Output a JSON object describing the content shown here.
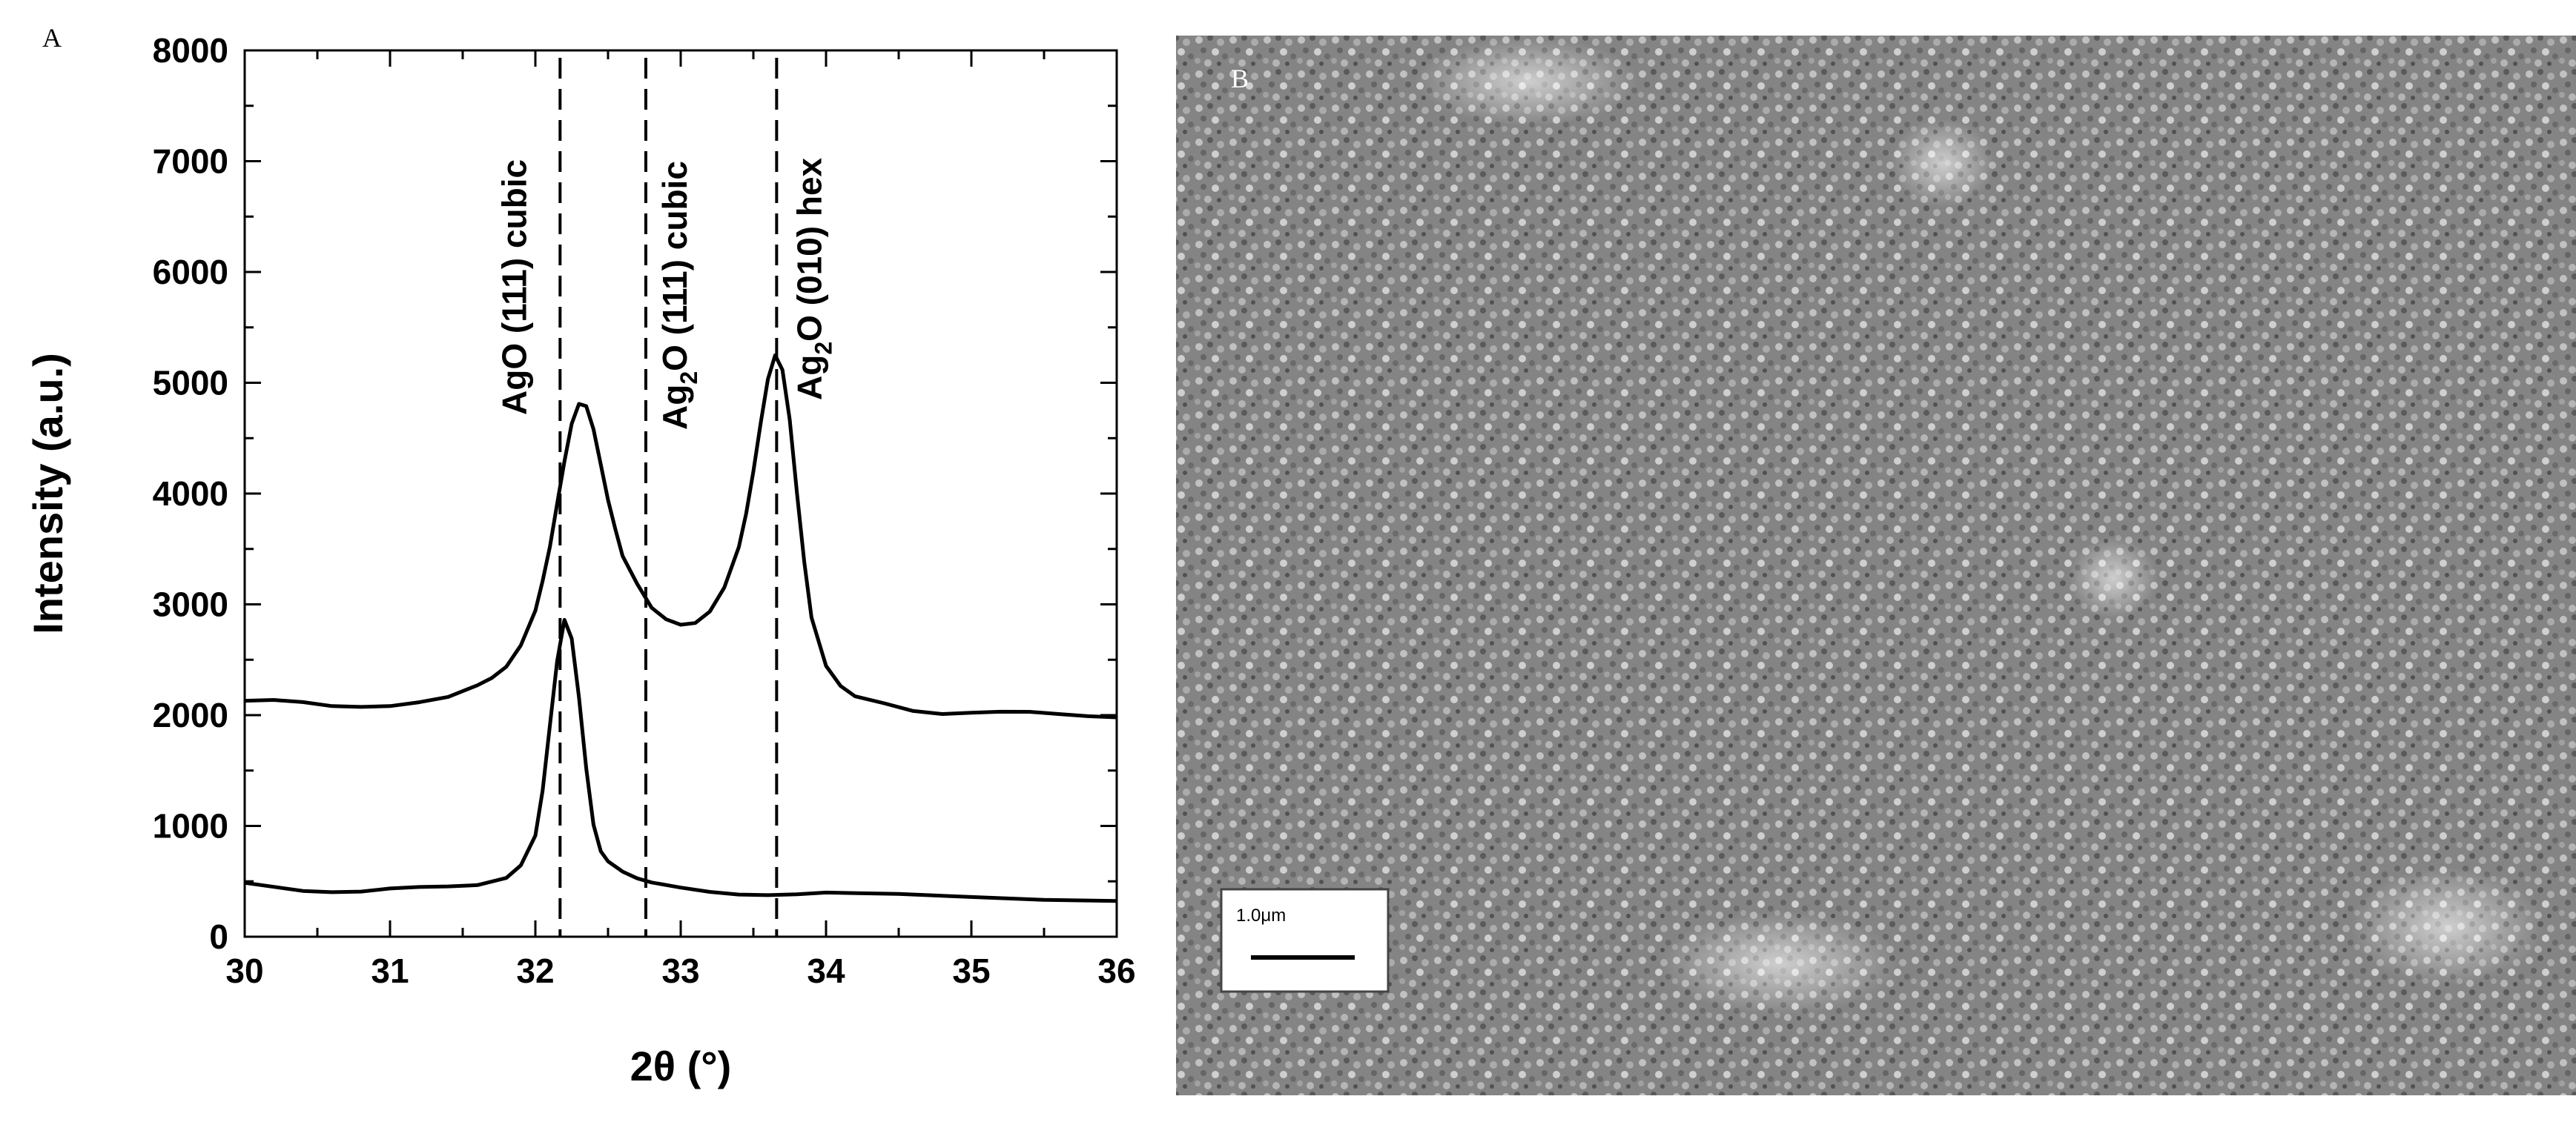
{
  "panels": {
    "a": {
      "letter": "A"
    },
    "b": {
      "letter": "B",
      "scale_bar_label": "1.0μm"
    }
  },
  "colors": {
    "line": "#000000",
    "background": "#ffffff",
    "sem_base": "#8a8a8a"
  },
  "chart_data": {
    "type": "line",
    "title": "",
    "xlabel": "2θ (°)",
    "ylabel": "Intensity (a.u.)",
    "xlim": [
      30,
      36
    ],
    "ylim": [
      0,
      8000
    ],
    "xticks": [
      30,
      31,
      32,
      33,
      34,
      35,
      36
    ],
    "yticks": [
      0,
      1000,
      2000,
      3000,
      4000,
      5000,
      6000,
      7000,
      8000
    ],
    "grid": false,
    "legend": "none",
    "reference_lines": [
      {
        "x": 32.17,
        "label_parts": [
          "AgO (111) cubic"
        ]
      },
      {
        "x": 32.76,
        "label_parts": [
          "Ag",
          "2",
          "O (111) cubic"
        ]
      },
      {
        "x": 33.66,
        "label_parts": [
          "Ag",
          "2",
          "O (010) hex"
        ]
      }
    ],
    "series": [
      {
        "x": [
          30.0,
          30.2,
          30.4,
          30.6,
          30.8,
          31.0,
          31.2,
          31.4,
          31.6,
          31.7,
          31.8,
          31.9,
          32.0,
          32.05,
          32.1,
          32.15,
          32.2,
          32.25,
          32.3,
          32.35,
          32.4,
          32.45,
          32.5,
          32.55,
          32.6,
          32.7,
          32.8,
          32.9,
          33.0,
          33.1,
          33.2,
          33.3,
          33.4,
          33.45,
          33.5,
          33.55,
          33.6,
          33.65,
          33.7,
          33.75,
          33.8,
          33.85,
          33.9,
          34.0,
          34.1,
          34.2,
          34.4,
          34.6,
          34.8,
          35.0,
          35.2,
          35.4,
          35.6,
          35.8,
          36.0
        ],
        "values": [
          2130,
          2120,
          2100,
          2080,
          2090,
          2100,
          2120,
          2150,
          2250,
          2330,
          2450,
          2650,
          2950,
          3200,
          3500,
          3900,
          4300,
          4650,
          4820,
          4780,
          4560,
          4250,
          3950,
          3700,
          3450,
          3180,
          2950,
          2850,
          2820,
          2850,
          2950,
          3150,
          3500,
          3800,
          4200,
          4650,
          5050,
          5250,
          5100,
          4650,
          4000,
          3400,
          2900,
          2450,
          2250,
          2150,
          2100,
          2050,
          2030,
          2030,
          2020,
          2010,
          2000,
          2000,
          2000
        ]
      },
      {
        "x": [
          30.0,
          30.2,
          30.4,
          30.6,
          30.8,
          31.0,
          31.2,
          31.4,
          31.6,
          31.8,
          31.9,
          32.0,
          32.05,
          32.1,
          32.15,
          32.2,
          32.25,
          32.3,
          32.35,
          32.4,
          32.45,
          32.5,
          32.6,
          32.7,
          32.8,
          33.0,
          33.2,
          33.4,
          33.6,
          33.8,
          34.0,
          34.5,
          35.0,
          35.5,
          36.0
        ],
        "values": [
          470,
          450,
          430,
          420,
          410,
          420,
          430,
          450,
          480,
          550,
          650,
          900,
          1300,
          1900,
          2500,
          2880,
          2700,
          2150,
          1500,
          1000,
          780,
          700,
          600,
          520,
          470,
          430,
          410,
          400,
          390,
          380,
          380,
          370,
          360,
          350,
          340
        ]
      }
    ]
  }
}
